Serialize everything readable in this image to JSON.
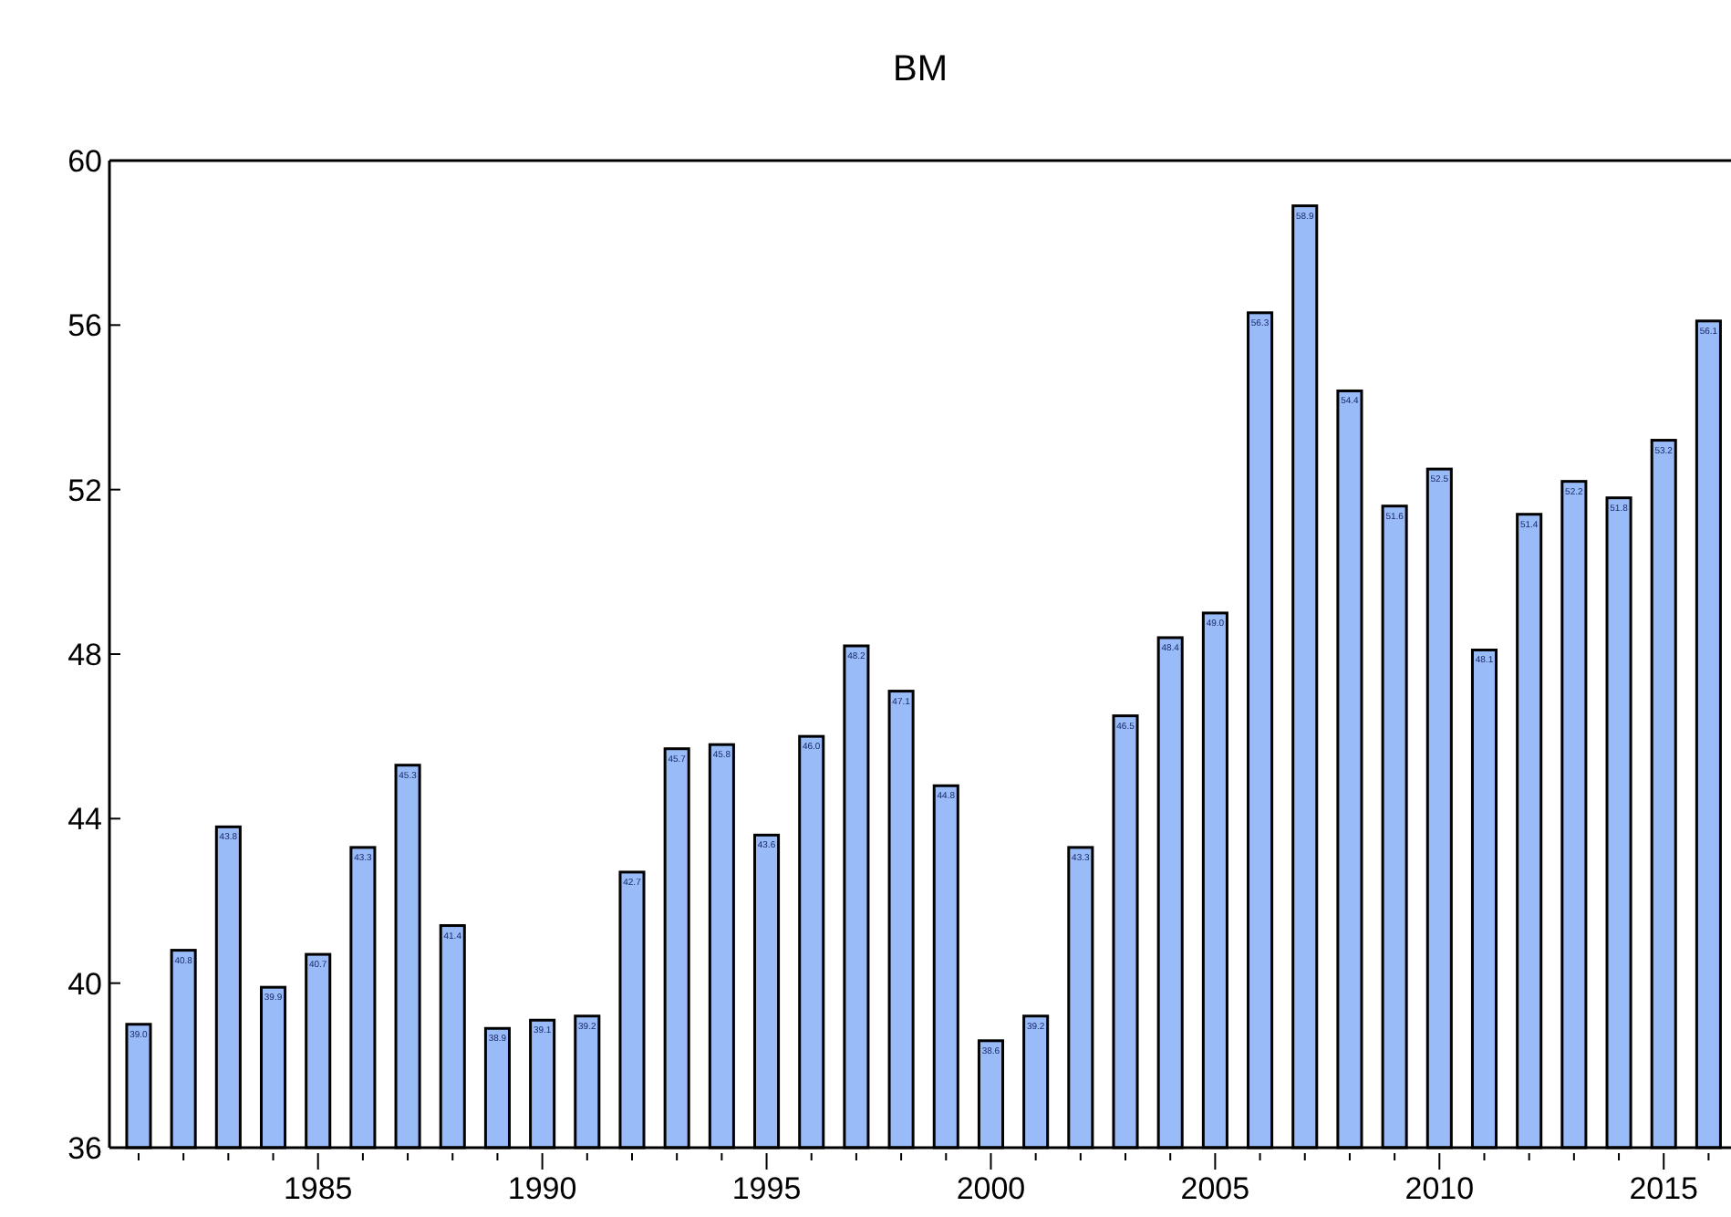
{
  "chart_data": {
    "type": "bar",
    "title": "BM",
    "x": [
      1981,
      1982,
      1983,
      1984,
      1985,
      1986,
      1987,
      1988,
      1989,
      1990,
      1991,
      1992,
      1993,
      1994,
      1995,
      1996,
      1997,
      1998,
      1999,
      2000,
      2001,
      2002,
      2003,
      2004,
      2005,
      2006,
      2007,
      2008,
      2009,
      2010,
      2011,
      2012,
      2013,
      2014,
      2015,
      2016
    ],
    "values": [
      39.0,
      40.8,
      43.8,
      39.9,
      40.7,
      43.3,
      45.3,
      41.4,
      38.9,
      39.1,
      39.2,
      42.7,
      45.7,
      45.8,
      43.6,
      46.0,
      48.2,
      47.1,
      44.8,
      38.6,
      39.2,
      43.3,
      46.5,
      48.4,
      49.0,
      56.3,
      58.9,
      54.4,
      51.6,
      52.5,
      48.1,
      51.4,
      52.2,
      51.8,
      53.2,
      56.1
    ],
    "color": "#99bbf7",
    "value_labels": [
      "39.0",
      "40.8",
      "43.8",
      "39.9",
      "40.7",
      "43.3",
      "45.3",
      "41.4",
      "38.9",
      "39.1",
      "39.2",
      "42.7",
      "45.7",
      "45.8",
      "43.6",
      "46.0",
      "48.2",
      "47.1",
      "44.8",
      "38.6",
      "39.2",
      "43.3",
      "46.5",
      "48.4",
      "49.0",
      "56.3",
      "58.9",
      "54.4",
      "51.6",
      "52.5",
      "48.1",
      "51.4",
      "52.2",
      "51.8",
      "53.2",
      "56.1"
    ],
    "xlim": [
      1980.35,
      2016.5
    ],
    "xticks": [
      {
        "value": 1981,
        "label": null
      },
      {
        "value": 1982,
        "label": null
      },
      {
        "value": 1983,
        "label": null
      },
      {
        "value": 1984,
        "label": null
      },
      1985,
      {
        "value": 1986,
        "label": null
      },
      {
        "value": 1987,
        "label": null
      },
      {
        "value": 1988,
        "label": null
      },
      {
        "value": 1989,
        "label": null
      },
      1990,
      {
        "value": 1991,
        "label": null
      },
      {
        "value": 1992,
        "label": null
      },
      {
        "value": 1993,
        "label": null
      },
      {
        "value": 1994,
        "label": null
      },
      1995,
      {
        "value": 1996,
        "label": null
      },
      {
        "value": 1997,
        "label": null
      },
      {
        "value": 1998,
        "label": null
      },
      {
        "value": 1999,
        "label": null
      },
      2000,
      {
        "value": 2001,
        "label": null
      },
      {
        "value": 2002,
        "label": null
      },
      {
        "value": 2003,
        "label": null
      },
      {
        "value": 2004,
        "label": null
      },
      2005,
      {
        "value": 2006,
        "label": null
      },
      {
        "value": 2007,
        "label": null
      },
      {
        "value": 2008,
        "label": null
      },
      {
        "value": 2009,
        "label": null
      },
      2010,
      {
        "value": 2011,
        "label": null
      },
      {
        "value": 2012,
        "label": null
      },
      {
        "value": 2013,
        "label": null
      },
      {
        "value": 2014,
        "label": null
      },
      2015,
      {
        "value": 2016,
        "label": null
      }
    ],
    "ylim": [
      36,
      60
    ],
    "yticks": [
      36,
      40,
      44,
      48,
      52,
      56,
      60
    ]
  }
}
